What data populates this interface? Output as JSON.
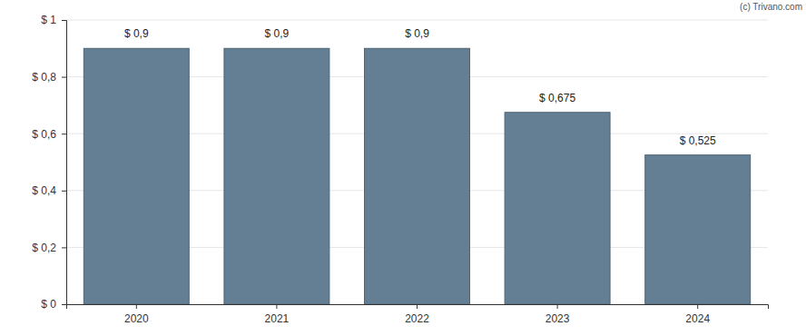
{
  "chart_data": {
    "type": "bar",
    "categories": [
      "2020",
      "2021",
      "2022",
      "2023",
      "2024"
    ],
    "values": [
      0.9,
      0.9,
      0.9,
      0.675,
      0.525
    ],
    "value_labels": [
      "$ 0,9",
      "$ 0,9",
      "$ 0,9",
      "$ 0,675",
      "$ 0,525"
    ],
    "color": "#647f94",
    "ylim": [
      0,
      1
    ],
    "yticks": [
      {
        "value": 0,
        "label": "$ 0"
      },
      {
        "value": 0.2,
        "label": "$ 0,2"
      },
      {
        "value": 0.4,
        "label": "$ 0,4"
      },
      {
        "value": 0.6,
        "label": "$ 0,6"
      },
      {
        "value": 0.8,
        "label": "$ 0,8"
      },
      {
        "value": 1,
        "label": "$ 1"
      }
    ],
    "grid": true,
    "data_labels": true,
    "annotations": [
      "(c) Trivano.com"
    ]
  }
}
